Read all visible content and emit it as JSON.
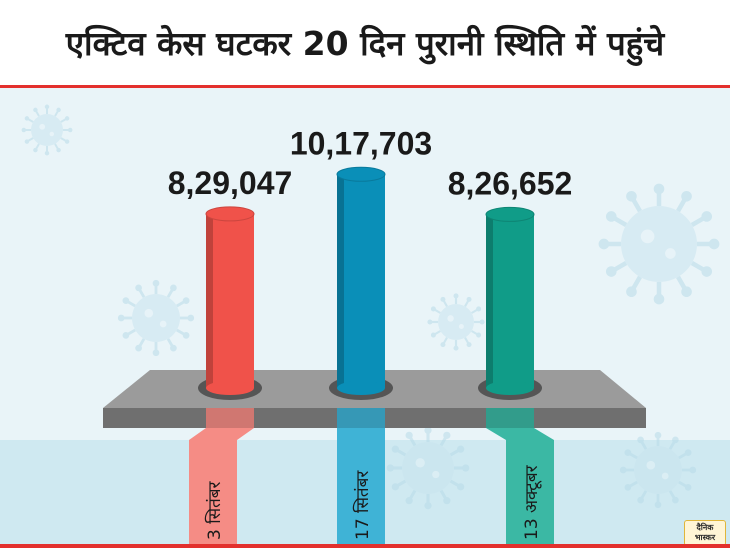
{
  "title": "एक्टिव केस घटकर 20 दिन पुरानी स्थिति में पहुंचे",
  "chart_data": {
    "type": "bar",
    "categories": [
      "3 सितंबर",
      "17 सितंबर",
      "13 अक्टूबर"
    ],
    "values": [
      829047,
      1017703,
      826652
    ],
    "value_labels": [
      "8,29,047",
      "10,17,703",
      "8,26,652"
    ],
    "colors": [
      "#f0524a",
      "#0a8fb8",
      "#109c88"
    ],
    "band_colors": [
      "#f58c85",
      "#3fb3d6",
      "#3bb8a4"
    ]
  },
  "logo_text": [
    "दैनिक",
    "भास्कर"
  ]
}
